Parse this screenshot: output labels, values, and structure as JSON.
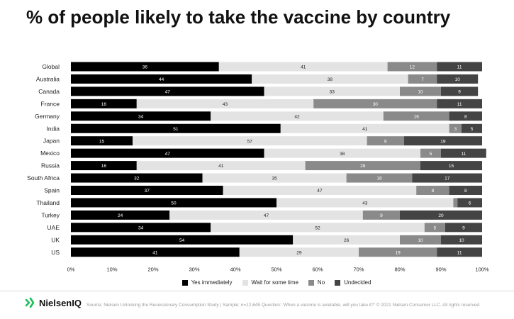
{
  "title": "% of people likely to take the vaccine by country",
  "source": "Source: Nielsen Unlocking the Recessionary Consumption Study | Sample: n=12,645 Question: 'When a vaccine is available, will you take it?' © 2021 Nielsen Consumer LLC. All rights reserved.",
  "brand": {
    "name": "NielsenIQ",
    "logo_icon": "nielseniq-logo-icon",
    "logo_color": "#1bbf5a"
  },
  "chart_data": {
    "type": "bar",
    "orientation": "horizontal",
    "stacked": true,
    "categories": [
      "Global",
      "Australia",
      "Canada",
      "France",
      "Germany",
      "India",
      "Japan",
      "Mexico",
      "Russia",
      "South Africa",
      "Spain",
      "Thailand",
      "Turkey",
      "UAE",
      "UK",
      "US"
    ],
    "series": [
      {
        "name": "Yes immediately",
        "color": "#000000",
        "label_color": "#ffffff",
        "values": [
          36,
          44,
          47,
          16,
          34,
          51,
          15,
          47,
          16,
          32,
          37,
          50,
          24,
          34,
          54,
          41
        ]
      },
      {
        "name": "Wait for some time",
        "color": "#e3e3e3",
        "label_color": "#222222",
        "values": [
          41,
          38,
          33,
          43,
          42,
          41,
          57,
          38,
          41,
          35,
          47,
          43,
          47,
          52,
          26,
          29
        ]
      },
      {
        "name": "No",
        "color": "#8a8a8a",
        "label_color": "#ffffff",
        "values": [
          12,
          7,
          10,
          30,
          16,
          3,
          9,
          5,
          28,
          16,
          8,
          1,
          9,
          5,
          10,
          19
        ]
      },
      {
        "name": "Undecided",
        "color": "#444444",
        "label_color": "#ffffff",
        "values": [
          11,
          10,
          9,
          11,
          8,
          5,
          19,
          11,
          15,
          17,
          8,
          6,
          20,
          9,
          10,
          11
        ]
      }
    ],
    "x_ticks": [
      "0%",
      "10%",
      "20%",
      "30%",
      "40%",
      "50%",
      "60%",
      "70%",
      "80%",
      "90%",
      "100%"
    ],
    "xlim": [
      0,
      100
    ],
    "grid": false,
    "legend_position": "bottom"
  }
}
